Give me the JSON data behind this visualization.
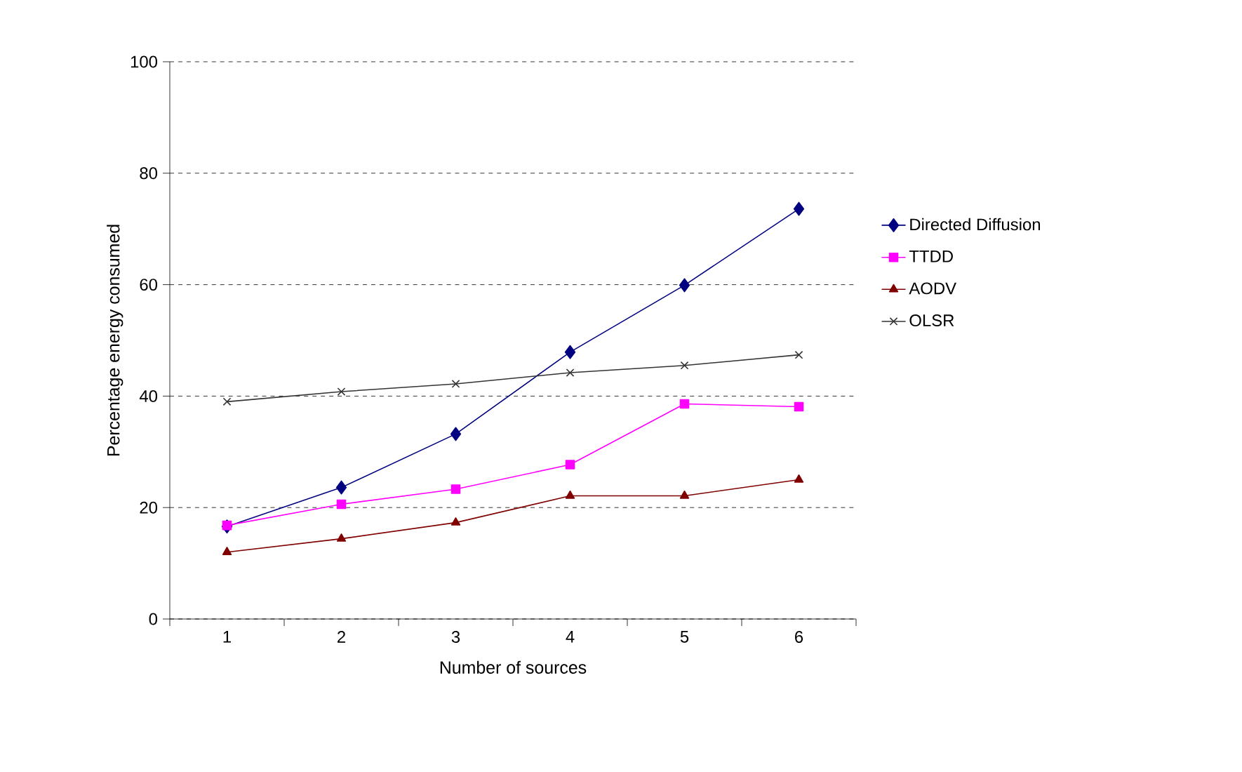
{
  "chart_data": {
    "type": "line",
    "xlabel": "Number of sources",
    "ylabel": "Percentage energy consumed",
    "categories": [
      "1",
      "2",
      "3",
      "4",
      "5",
      "6"
    ],
    "ylim": [
      0,
      100
    ],
    "yticks": [
      0,
      20,
      40,
      60,
      80,
      100
    ],
    "grid": "y",
    "legend": "right",
    "series": [
      {
        "name": "Directed Diffusion",
        "color": "#000080",
        "marker": "diamond",
        "values": [
          16.6,
          23.6,
          33.2,
          47.9,
          59.9,
          73.6
        ]
      },
      {
        "name": "TTDD",
        "color": "#ff00ff",
        "marker": "square",
        "values": [
          16.8,
          20.6,
          23.3,
          27.7,
          38.6,
          38.1
        ]
      },
      {
        "name": "AODV",
        "color": "#800000",
        "marker": "triangle",
        "values": [
          12.0,
          14.4,
          17.3,
          22.1,
          22.1,
          25.0
        ]
      },
      {
        "name": "OLSR",
        "color": "#333333",
        "marker": "cross",
        "values": [
          39.0,
          40.8,
          42.2,
          44.2,
          45.5,
          47.4
        ]
      }
    ]
  }
}
